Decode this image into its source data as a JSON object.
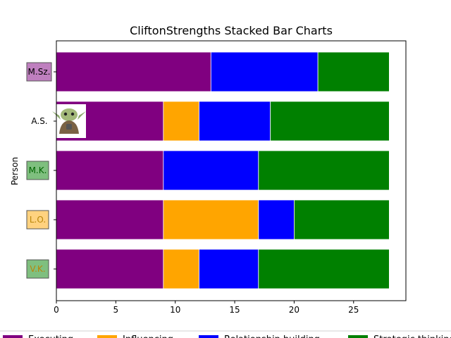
{
  "chart_data": {
    "type": "bar",
    "orientation": "horizontal",
    "stacked": true,
    "title": "CliftonStrengths Stacked Bar Charts",
    "xlabel": "",
    "ylabel": "Person",
    "xlim": [
      0,
      29.4
    ],
    "xticks": [
      0,
      5,
      10,
      15,
      20,
      25
    ],
    "categories": [
      "V.K.",
      "L.O.",
      "M.K.",
      "A.S.",
      "M.Sz."
    ],
    "label_boxes": {
      "V.K.": {
        "face": "#7fbf7f",
        "text_color": "#b8860b"
      },
      "L.O.": {
        "face": "#ffd27f",
        "text_color": "#b8860b"
      },
      "M.K.": {
        "face": "#7fbf7f",
        "text_color": "#006400"
      },
      "A.S.": {
        "face": "none",
        "text_color": "#000000"
      },
      "M.Sz.": {
        "face": "#bf7fbf",
        "text_color": "#000000"
      }
    },
    "series": [
      {
        "name": "Executing",
        "color": "#800080",
        "values": [
          9,
          9,
          9,
          9,
          13
        ]
      },
      {
        "name": "Influencing",
        "color": "#ffa500",
        "values": [
          3,
          8,
          0,
          3,
          0
        ]
      },
      {
        "name": "Relationship building",
        "color": "#0000ff",
        "values": [
          5,
          3,
          8,
          6,
          9
        ]
      },
      {
        "name": "Strategic thinking",
        "color": "#008000",
        "values": [
          11,
          8,
          11,
          10,
          6
        ]
      }
    ],
    "legend": "bottom",
    "grid": false,
    "image_marker": {
      "category": "A.S.",
      "icon": "baby-yoda-icon"
    }
  }
}
